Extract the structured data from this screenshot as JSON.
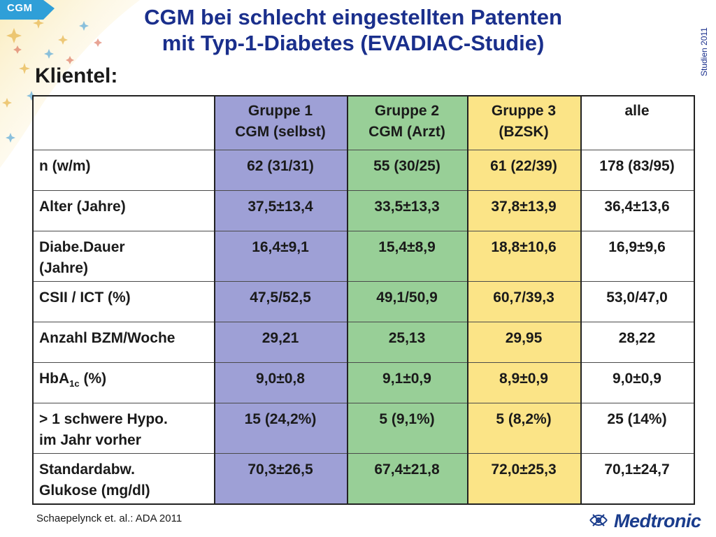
{
  "corner_tab": "CGM",
  "side_label": "Studien 2011",
  "title_lines": [
    "CGM bei schlecht eingestellten Patenten",
    "mit Typ-1-Diabetes (EVADIAC-Studie)"
  ],
  "subheading": "Klientel:",
  "table": {
    "headers": [
      {
        "line1": "Gruppe 1",
        "line2": "CGM (selbst)"
      },
      {
        "line1": "Gruppe 2",
        "line2": "CGM (Arzt)"
      },
      {
        "line1": "Gruppe 3",
        "line2": "(BZSK)"
      },
      {
        "line1": "alle",
        "line2": ""
      }
    ],
    "rows": [
      {
        "label": "n (w/m)",
        "values": [
          "62 (31/31)",
          "55 (30/25)",
          "61 (22/39)",
          "178 (83/95)"
        ]
      },
      {
        "label": "Alter (Jahre)",
        "values": [
          "37,5±13,4",
          "33,5±13,3",
          "37,8±13,9",
          "36,4±13,6"
        ]
      },
      {
        "label_line1": "Diabe.Dauer",
        "label_line2": "(Jahre)",
        "values": [
          "16,4±9,1",
          "15,4±8,9",
          "18,8±10,6",
          "16,9±9,6"
        ]
      },
      {
        "label": "CSII / ICT (%)",
        "values": [
          "47,5/52,5",
          "49,1/50,9",
          "60,7/39,3",
          "53,0/47,0"
        ]
      },
      {
        "label": "Anzahl BZM/Woche",
        "values": [
          "29,21",
          "25,13",
          "29,95",
          "28,22"
        ]
      },
      {
        "label_main": "HbA",
        "label_sub": "1c",
        "label_rest": " (%)",
        "values": [
          "9,0±0,8",
          "9,1±0,9",
          "8,9±0,9",
          "9,0±0,9"
        ]
      },
      {
        "label_line1": "> 1 schwere Hypo.",
        "label_line2": "im Jahr vorher",
        "values": [
          "15 (24,2%)",
          "5 (9,1%)",
          "5 (8,2%)",
          "25 (14%)"
        ]
      },
      {
        "label_line1": "Standardabw.",
        "label_line2": "Glukose (mg/dl)",
        "values": [
          "70,3±26,5",
          "67,4±21,8",
          "72,0±25,3",
          "70,1±24,7"
        ]
      }
    ]
  },
  "footer": "Schaepelynck et. al.:  ADA 2011",
  "logo": {
    "brand": "Medtronic",
    "icon": "medtronic-logo-icon"
  },
  "colors": {
    "title": "#1a2f8c",
    "group1": "#9ea0d6",
    "group2": "#98cf97",
    "group3": "#fbe487",
    "tab": "#2f9fd8"
  }
}
